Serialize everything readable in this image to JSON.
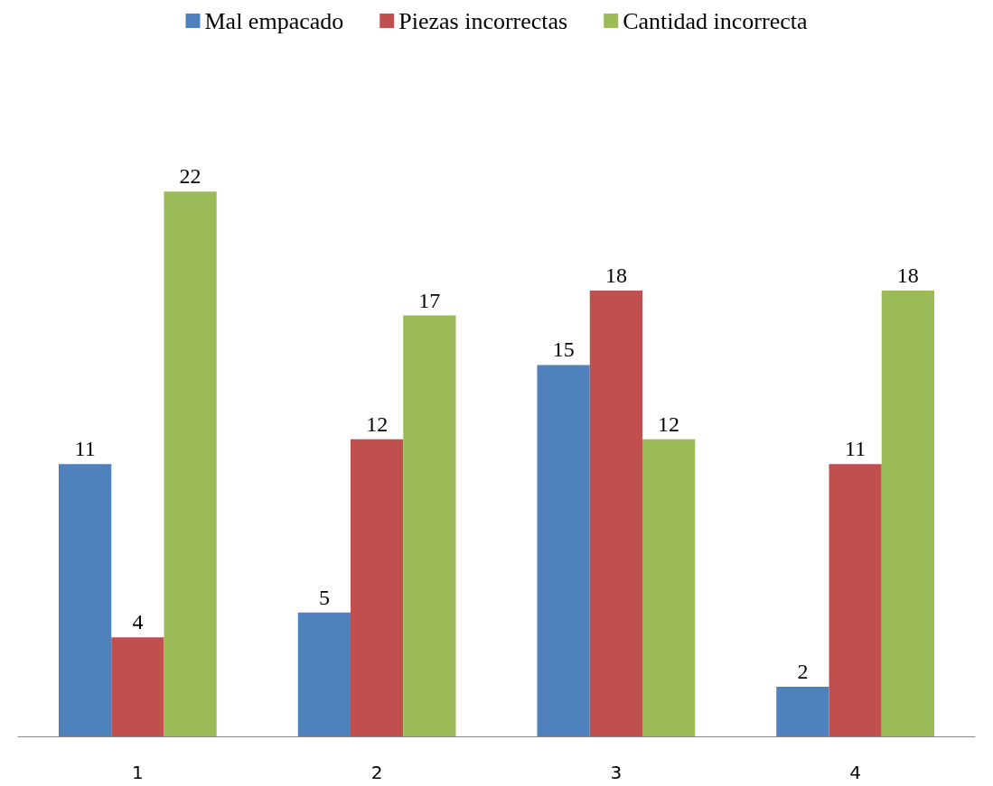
{
  "chart_data": {
    "type": "bar",
    "categories": [
      "1",
      "2",
      "3",
      "4"
    ],
    "series": [
      {
        "name": "Mal empacado",
        "color": "#4f81bd",
        "values": [
          11,
          5,
          15,
          2
        ]
      },
      {
        "name": "Piezas incorrectas",
        "color": "#c0504d",
        "values": [
          4,
          12,
          18,
          11
        ]
      },
      {
        "name": "Cantidad incorrecta",
        "color": "#9bbb59",
        "values": [
          22,
          17,
          12,
          18
        ]
      }
    ],
    "data_labels": true,
    "legend": "top"
  }
}
